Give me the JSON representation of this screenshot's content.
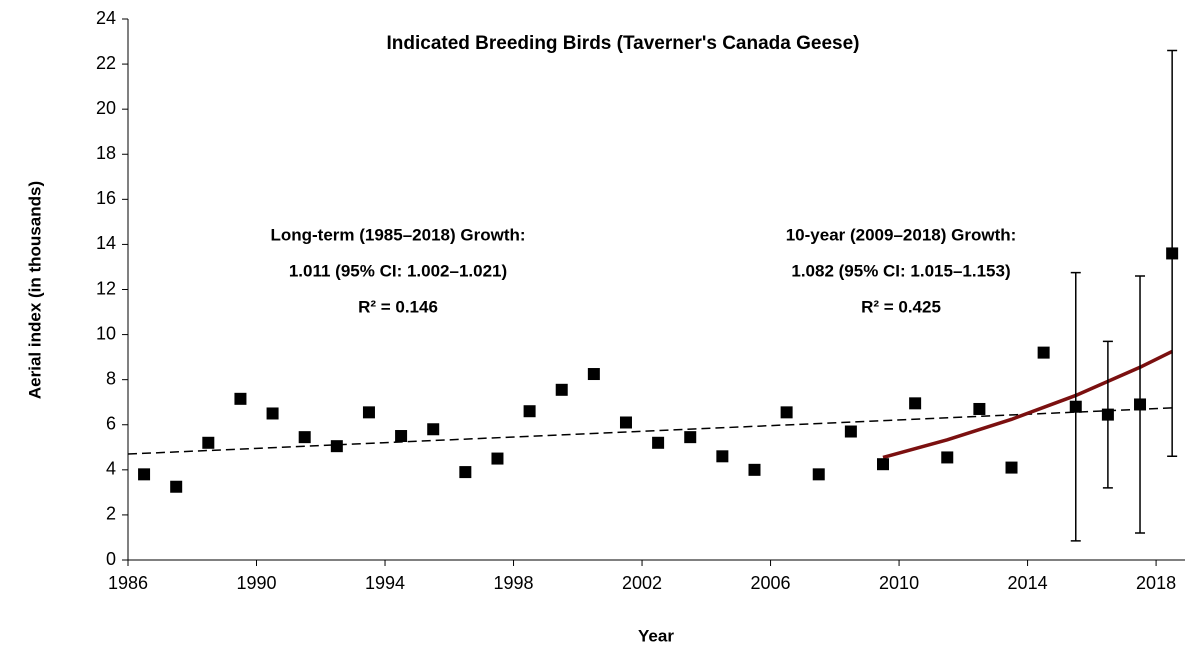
{
  "chart_data": {
    "type": "scatter",
    "title": "Indicated Breeding Birds  (Taverner's Canada Geese)",
    "x_label": "Year",
    "y_label": "Aerial index (in thousands)",
    "annotations": [
      {
        "lines": [
          "Long-term (1985–2018) Growth:",
          "1.011  (95% CI: 1.002–1.021)",
          "R² = 0.146"
        ]
      },
      {
        "lines": [
          "10-year (2009–2018) Growth:",
          "1.082  (95% CI: 1.015–1.153)",
          "R² = 0.425"
        ]
      }
    ],
    "series": [
      {
        "name": "Indicated breeding birds",
        "color": "#000000",
        "x": [
          1986.5,
          1987.5,
          1988.5,
          1989.5,
          1990.5,
          1991.5,
          1992.5,
          1993.5,
          1994.5,
          1995.5,
          1996.5,
          1997.5,
          1998.5,
          1999.5,
          2000.5,
          2001.5,
          2002.5,
          2003.5,
          2004.5,
          2005.5,
          2006.5,
          2007.5,
          2008.5,
          2009.5,
          2010.5,
          2011.5,
          2012.5,
          2013.5,
          2014.5,
          2015.5,
          2016.5,
          2017.5,
          2018.5
        ],
        "values": [
          3.8,
          3.25,
          5.2,
          7.15,
          6.5,
          5.45,
          5.05,
          6.55,
          5.5,
          5.8,
          3.9,
          4.5,
          6.6,
          7.55,
          8.25,
          6.1,
          5.2,
          5.45,
          4.6,
          4.0,
          6.55,
          3.8,
          5.7,
          4.25,
          6.95,
          4.55,
          6.7,
          4.1,
          9.2,
          6.8,
          6.45,
          6.9,
          13.6
        ],
        "errors": [
          null,
          null,
          null,
          null,
          null,
          null,
          null,
          null,
          null,
          null,
          null,
          null,
          null,
          null,
          null,
          null,
          null,
          null,
          null,
          null,
          null,
          null,
          null,
          null,
          null,
          null,
          null,
          null,
          null,
          5.95,
          3.25,
          5.7,
          9.0
        ]
      }
    ],
    "trend_long": {
      "color": "#000000",
      "x": [
        1986,
        2018.5
      ],
      "values": [
        4.7,
        6.75
      ]
    },
    "trend_10yr": {
      "color": "#7b1010",
      "x": [
        2009.5,
        2011.5,
        2013.5,
        2015.5,
        2017.5,
        2018.5
      ],
      "values": [
        4.55,
        5.33,
        6.24,
        7.3,
        8.55,
        9.25
      ]
    },
    "xlim": [
      1986,
      2018.9
    ],
    "xticks": [
      1986,
      1990,
      1994,
      1998,
      2002,
      2006,
      2010,
      2014,
      2018
    ],
    "ylim": [
      0,
      24
    ],
    "yticks": [
      0,
      2,
      4,
      6,
      8,
      10,
      12,
      14,
      16,
      18,
      20,
      22,
      24
    ]
  }
}
